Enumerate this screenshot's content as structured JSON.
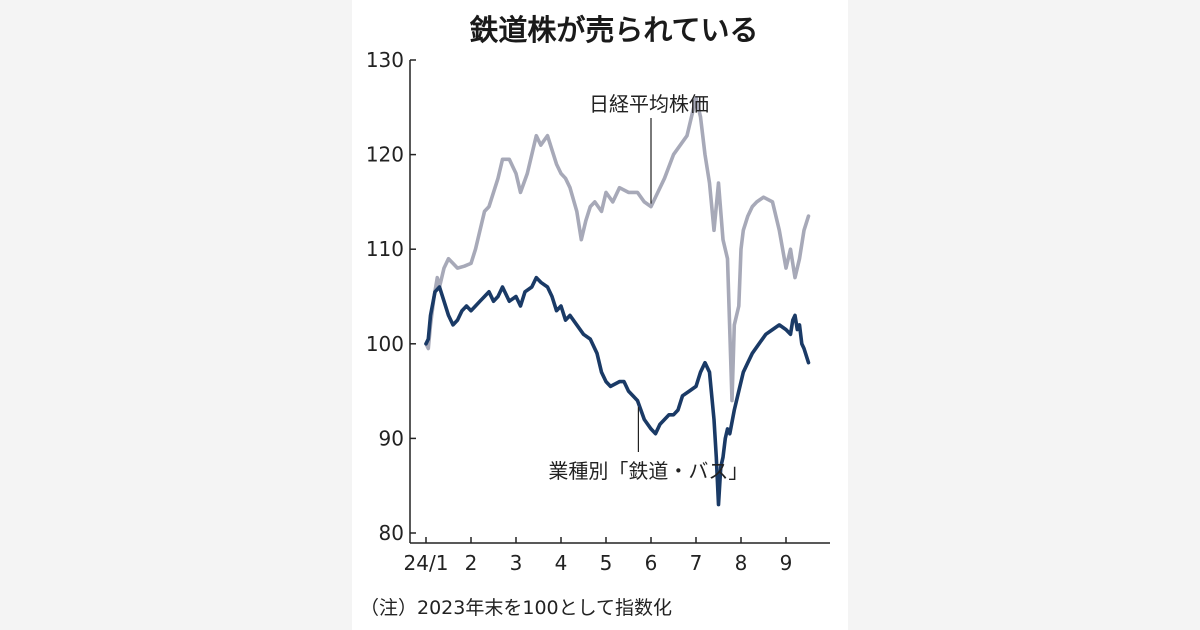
{
  "chart_data": {
    "type": "line",
    "title": "鉄道株が売られている",
    "note": "（注）2023年末を100として指数化",
    "xlabel": "",
    "ylabel": "",
    "ylim": [
      80,
      130
    ],
    "yticks": [
      80,
      90,
      100,
      110,
      120,
      130
    ],
    "x_tick_labels": [
      "24/1",
      "2",
      "3",
      "4",
      "5",
      "6",
      "7",
      "8",
      "9"
    ],
    "x_tick_positions": [
      0,
      1,
      2,
      3,
      4,
      5,
      6,
      7,
      8
    ],
    "xlim": [
      0,
      8.85
    ],
    "series": [
      {
        "name": "日経平均株価",
        "color": "#a7a9b8",
        "x": [
          0,
          0.05,
          0.1,
          0.18,
          0.25,
          0.3,
          0.4,
          0.5,
          0.6,
          0.7,
          0.85,
          1.0,
          1.1,
          1.2,
          1.3,
          1.4,
          1.5,
          1.6,
          1.7,
          1.85,
          2.0,
          2.1,
          2.25,
          2.35,
          2.45,
          2.55,
          2.7,
          2.8,
          2.9,
          3.0,
          3.1,
          3.2,
          3.35,
          3.45,
          3.55,
          3.65,
          3.75,
          3.9,
          4.0,
          4.15,
          4.3,
          4.5,
          4.7,
          4.85,
          5.0,
          5.15,
          5.3,
          5.5,
          5.65,
          5.8,
          6.0,
          6.1,
          6.2,
          6.3,
          6.4,
          6.5,
          6.6,
          6.7,
          6.8,
          6.85,
          6.95,
          7.0,
          7.05,
          7.15,
          7.25,
          7.35,
          7.5,
          7.7,
          7.85,
          8.0,
          8.1,
          8.2,
          8.3,
          8.4,
          8.5
        ],
        "values": [
          100,
          99.5,
          102,
          105,
          107,
          106,
          108,
          109,
          108.5,
          108,
          108.2,
          108.5,
          110,
          112,
          114,
          114.5,
          116,
          117.5,
          119.5,
          119.5,
          118,
          116,
          118,
          120,
          122,
          121,
          122,
          120.5,
          119,
          118,
          117.5,
          116.5,
          114,
          111,
          113,
          114.5,
          115,
          114,
          116,
          115,
          116.5,
          116,
          116,
          115,
          114.5,
          116,
          117.5,
          120,
          121,
          122,
          126,
          124,
          120,
          117,
          112,
          117,
          111,
          109,
          94,
          102,
          104,
          110,
          112,
          113.5,
          114.5,
          115,
          115.5,
          115,
          112,
          108,
          110,
          107,
          109,
          112,
          113.5
        ]
      },
      {
        "name": "業種別「鉄道・バス」",
        "color": "#1a3a66",
        "x": [
          0,
          0.05,
          0.1,
          0.2,
          0.3,
          0.4,
          0.5,
          0.6,
          0.7,
          0.8,
          0.9,
          1.0,
          1.1,
          1.2,
          1.3,
          1.4,
          1.5,
          1.6,
          1.7,
          1.85,
          2.0,
          2.1,
          2.2,
          2.35,
          2.45,
          2.55,
          2.7,
          2.8,
          2.9,
          3.0,
          3.1,
          3.2,
          3.35,
          3.5,
          3.65,
          3.8,
          3.9,
          4.0,
          4.1,
          4.3,
          4.4,
          4.5,
          4.7,
          4.85,
          5.0,
          5.1,
          5.2,
          5.3,
          5.4,
          5.5,
          5.6,
          5.7,
          5.85,
          6.0,
          6.1,
          6.2,
          6.3,
          6.4,
          6.45,
          6.5,
          6.55,
          6.6,
          6.65,
          6.7,
          6.75,
          6.85,
          6.95,
          7.05,
          7.15,
          7.25,
          7.4,
          7.55,
          7.7,
          7.85,
          8.0,
          8.1,
          8.15,
          8.2,
          8.25,
          8.3,
          8.35,
          8.4,
          8.5
        ],
        "values": [
          100,
          100.5,
          103,
          105.5,
          106,
          104.5,
          103,
          102,
          102.5,
          103.5,
          104,
          103.5,
          104,
          104.5,
          105,
          105.5,
          104.5,
          105,
          106,
          104.5,
          105,
          104,
          105.5,
          106,
          107,
          106.5,
          106,
          105,
          103.5,
          104,
          102.5,
          103,
          102,
          101,
          100.5,
          99,
          97,
          96,
          95.5,
          96,
          96,
          95,
          94,
          92,
          91,
          90.5,
          91.5,
          92,
          92.5,
          92.5,
          93,
          94.5,
          95,
          95.5,
          97,
          98,
          97,
          92,
          88,
          83,
          87,
          88,
          90,
          91,
          90.5,
          93,
          95,
          97,
          98,
          99,
          100,
          101,
          101.5,
          102,
          101.5,
          101,
          102.5,
          103,
          101.5,
          102,
          100,
          99.5,
          98
        ]
      }
    ],
    "annotations": [
      {
        "text": "日経平均株価",
        "series": 0,
        "x": 5.0
      },
      {
        "text": "業種別「鉄道・バス」",
        "series": 1,
        "x": 4.72
      }
    ]
  }
}
